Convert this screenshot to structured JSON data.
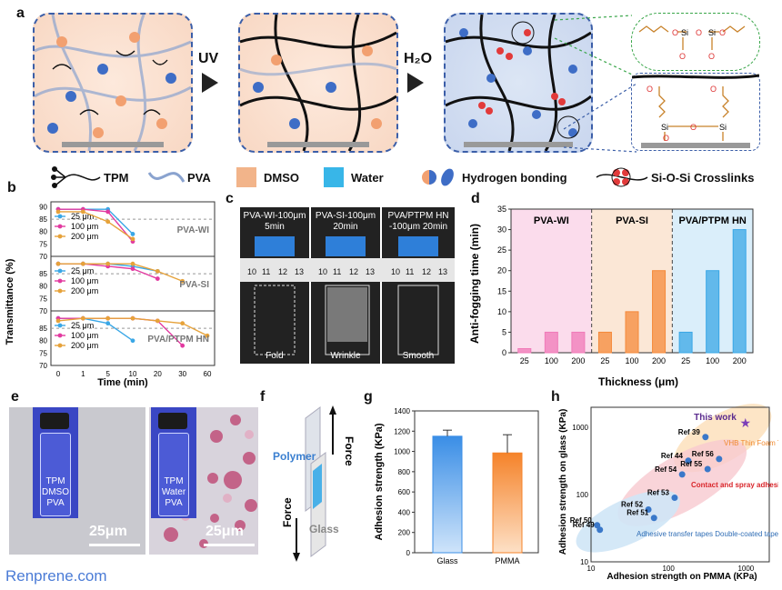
{
  "panel_labels": [
    "a",
    "b",
    "c",
    "d",
    "e",
    "f",
    "g",
    "h"
  ],
  "panel_a": {
    "arrow1": "UV",
    "arrow2": "H₂O",
    "crosslink_atoms": [
      "O",
      "Si",
      "O",
      "Si",
      "O",
      "O",
      "O",
      "O",
      "O",
      "Si",
      "O",
      "Si",
      "O"
    ]
  },
  "legend": [
    {
      "label": "TPM",
      "icon": "tpm-icon"
    },
    {
      "label": "PVA",
      "icon": "pva-chain-icon"
    },
    {
      "label": "DMSO",
      "icon": "dmso-square-icon",
      "color": "#f2b48a"
    },
    {
      "label": "Water",
      "icon": "water-square-icon",
      "color": "#38b6e8"
    },
    {
      "label": "Hydrogen bonding",
      "icon": "hbond-icon"
    },
    {
      "label": "Si-O-Si Crosslinks",
      "icon": "crosslink-icon"
    }
  ],
  "panel_b": {
    "ylabel": "Transmittance (%)",
    "xlabel": "Time (min)",
    "xticks": [
      "0",
      "1",
      "5",
      "10",
      "20",
      "30",
      "60"
    ],
    "yticks": [
      "90",
      "85",
      "80",
      "75",
      "70"
    ],
    "subplots": [
      {
        "tag": "PVA-WI",
        "legend": [
          "25 μm",
          "100 μm",
          "200 μm"
        ]
      },
      {
        "tag": "PVA-SI",
        "legend": [
          "25 μm",
          "100 μm",
          "200 μm"
        ]
      },
      {
        "tag": "PVA/PTPM HN",
        "legend": [
          "25 μm",
          "100 μm",
          "200 μm"
        ]
      }
    ]
  },
  "panel_c": {
    "titles": [
      [
        "PVA-WI-100μm",
        "5min"
      ],
      [
        "PVA-SI-100μm",
        "20min"
      ],
      [
        "PVA/PTPM HN",
        "-100μm  20min"
      ]
    ],
    "ruler": [
      "10",
      "11",
      "12",
      "13"
    ],
    "captions": [
      "Fold",
      "Wrinkle",
      "Smooth"
    ]
  },
  "chart_data": [
    {
      "type": "line",
      "title": "",
      "xlabel": "Time (min)",
      "ylabel": "Transmittance (%)",
      "x": [
        "0",
        "1",
        "5",
        "10",
        "20",
        "30",
        "60"
      ],
      "ylim": [
        70,
        92
      ],
      "panels": [
        {
          "tag": "PVA-WI",
          "series": [
            {
              "name": "25 μm",
              "values": [
                89,
                89,
                89,
                79,
                null,
                null,
                null
              ]
            },
            {
              "name": "100 μm",
              "values": [
                89,
                89,
                88,
                76,
                null,
                null,
                null
              ]
            },
            {
              "name": "200 μm",
              "values": [
                88,
                88,
                84,
                77,
                null,
                null,
                null
              ]
            }
          ]
        },
        {
          "tag": "PVA-SI",
          "series": [
            {
              "name": "25 μm",
              "values": [
                89,
                89,
                89,
                88,
                86,
                null,
                null
              ]
            },
            {
              "name": "100 μm",
              "values": [
                89,
                89,
                88,
                87,
                83,
                null,
                null
              ]
            },
            {
              "name": "200 μm",
              "values": [
                89,
                89,
                89,
                89,
                86,
                82,
                null
              ]
            }
          ]
        },
        {
          "tag": "PVA/PTPM HN",
          "series": [
            {
              "name": "25 μm",
              "values": [
                89,
                89,
                87,
                80,
                null,
                null,
                null
              ]
            },
            {
              "name": "100 μm",
              "values": [
                89,
                89,
                89,
                89,
                88,
                78,
                null
              ]
            },
            {
              "name": "200 μm",
              "values": [
                88,
                89,
                89,
                89,
                88,
                87,
                82
              ]
            }
          ]
        }
      ]
    },
    {
      "type": "bar",
      "ylabel": "Anti-fogging time (min)",
      "xlabel": "Thickness (μm)",
      "categories": [
        "25",
        "100",
        "200",
        "25",
        "100",
        "200",
        "25",
        "100",
        "200"
      ],
      "groups": [
        "PVA-WI",
        "PVA-SI",
        "PVA/PTPM HN"
      ],
      "values": [
        1,
        5,
        5,
        5,
        10,
        20,
        5,
        20,
        30
      ],
      "ylim": [
        0,
        35
      ],
      "yticks": [
        0,
        5,
        10,
        15,
        20,
        25,
        30,
        35
      ],
      "colors": {
        "PVA-WI": "#f07ab8",
        "PVA-SI": "#f5893a",
        "PVA/PTPM HN": "#3aa7e6"
      }
    },
    {
      "type": "bar",
      "ylabel": "Adhesion strength (KPa)",
      "categories": [
        "Glass",
        "PMMA"
      ],
      "values": [
        1150,
        985
      ],
      "errors": [
        60,
        180
      ],
      "ylim": [
        0,
        1400
      ],
      "yticks": [
        0,
        200,
        400,
        600,
        800,
        1000,
        1200,
        1400
      ]
    },
    {
      "type": "scatter",
      "ylabel": "Adhesion strength on glass (KPa)",
      "xlabel": "Adhesion strength on PMMA (KPa)",
      "xscale": "log",
      "yscale": "log",
      "xticks": [
        "10",
        "100",
        "1000"
      ],
      "yticks": [
        "10",
        "100",
        "1000"
      ],
      "points": [
        {
          "label": "Ref 50",
          "x": 12,
          "y": 35
        },
        {
          "label": "Ref 49",
          "x": 13,
          "y": 30
        },
        {
          "label": "Ref 52",
          "x": 55,
          "y": 60
        },
        {
          "label": "Ref 51",
          "x": 65,
          "y": 45
        },
        {
          "label": "Ref 53",
          "x": 120,
          "y": 90
        },
        {
          "label": "Ref 54",
          "x": 150,
          "y": 200
        },
        {
          "label": "Ref 44",
          "x": 180,
          "y": 320
        },
        {
          "label": "Ref 55",
          "x": 320,
          "y": 240
        },
        {
          "label": "Ref 56",
          "x": 450,
          "y": 340
        },
        {
          "label": "Ref 39",
          "x": 300,
          "y": 720
        }
      ],
      "this_work": {
        "label": "This work",
        "x": 985,
        "y": 1150
      },
      "regions": [
        {
          "label": "VHB Thin Foam Tapes",
          "color": "#f08a30"
        },
        {
          "label": "Contact and spray adhesives (Solvent and water base)",
          "color": "#d9262b"
        },
        {
          "label": "Adhesive transfer tapes Double-coated tapes",
          "color": "#2f6db5"
        }
      ]
    }
  ],
  "panel_e": {
    "vial1": [
      "TPM",
      "DMSO",
      "PVA"
    ],
    "vial2": [
      "TPM",
      "Water",
      "PVA"
    ],
    "scale": "25μm"
  },
  "panel_f": {
    "force": "Force",
    "polymer": "Polymer",
    "glass": "Glass"
  },
  "watermark": "Renprene.com"
}
